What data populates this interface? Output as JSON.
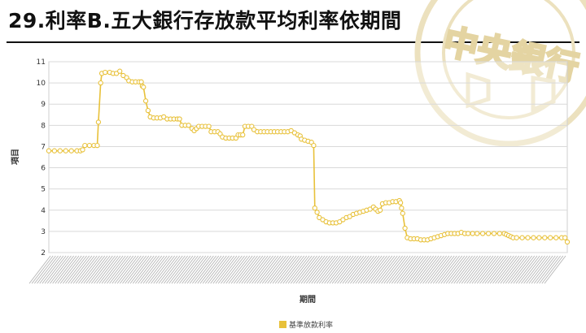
{
  "page": {
    "title": "29.利率B.五大銀行存放款平均利率依期間"
  },
  "watermark": {
    "text": "中央銀行",
    "color": "#e9dcb2"
  },
  "chart_data": {
    "type": "line",
    "title": "",
    "xlabel": "期間",
    "ylabel": "項目",
    "ylim": [
      2,
      11
    ],
    "yticks": [
      2,
      3,
      4,
      5,
      6,
      7,
      8,
      9,
      10,
      11
    ],
    "grid": true,
    "legend_position": "bottom",
    "x_tick_labels_legible": false,
    "series": [
      {
        "name": "基準放款利率",
        "color": "#e8c13a",
        "markers": true,
        "points": [
          [
            0,
            6.8
          ],
          [
            5,
            6.8
          ],
          [
            10,
            6.8
          ],
          [
            15,
            6.8
          ],
          [
            20,
            6.8
          ],
          [
            25,
            6.8
          ],
          [
            28,
            6.8
          ],
          [
            30,
            6.85
          ],
          [
            32,
            7.05
          ],
          [
            36,
            7.05
          ],
          [
            40,
            7.05
          ],
          [
            43,
            7.05
          ],
          [
            44,
            8.15
          ],
          [
            46,
            10.0
          ],
          [
            47,
            10.45
          ],
          [
            50,
            10.5
          ],
          [
            54,
            10.5
          ],
          [
            57,
            10.45
          ],
          [
            60,
            10.45
          ],
          [
            63,
            10.55
          ],
          [
            66,
            10.35
          ],
          [
            69,
            10.25
          ],
          [
            71,
            10.1
          ],
          [
            74,
            10.05
          ],
          [
            77,
            10.05
          ],
          [
            80,
            10.05
          ],
          [
            82,
            10.05
          ],
          [
            83,
            9.85
          ],
          [
            84,
            9.8
          ],
          [
            86,
            9.15
          ],
          [
            88,
            8.7
          ],
          [
            90,
            8.4
          ],
          [
            93,
            8.35
          ],
          [
            96,
            8.35
          ],
          [
            99,
            8.35
          ],
          [
            102,
            8.4
          ],
          [
            105,
            8.3
          ],
          [
            108,
            8.3
          ],
          [
            111,
            8.3
          ],
          [
            114,
            8.3
          ],
          [
            116,
            8.3
          ],
          [
            118,
            8.0
          ],
          [
            121,
            8.0
          ],
          [
            124,
            8.0
          ],
          [
            127,
            7.85
          ],
          [
            129,
            7.75
          ],
          [
            131,
            7.85
          ],
          [
            133,
            7.95
          ],
          [
            136,
            7.95
          ],
          [
            139,
            7.95
          ],
          [
            142,
            7.95
          ],
          [
            144,
            7.7
          ],
          [
            147,
            7.7
          ],
          [
            150,
            7.7
          ],
          [
            152,
            7.6
          ],
          [
            154,
            7.45
          ],
          [
            157,
            7.4
          ],
          [
            160,
            7.4
          ],
          [
            163,
            7.4
          ],
          [
            166,
            7.4
          ],
          [
            168,
            7.55
          ],
          [
            170,
            7.55
          ],
          [
            172,
            7.55
          ],
          [
            174,
            7.95
          ],
          [
            177,
            7.95
          ],
          [
            180,
            7.95
          ],
          [
            182,
            7.8
          ],
          [
            185,
            7.7
          ],
          [
            188,
            7.7
          ],
          [
            191,
            7.7
          ],
          [
            194,
            7.7
          ],
          [
            197,
            7.7
          ],
          [
            200,
            7.7
          ],
          [
            203,
            7.7
          ],
          [
            206,
            7.7
          ],
          [
            209,
            7.7
          ],
          [
            212,
            7.7
          ],
          [
            215,
            7.75
          ],
          [
            218,
            7.65
          ],
          [
            221,
            7.55
          ],
          [
            223,
            7.5
          ],
          [
            224,
            7.35
          ],
          [
            227,
            7.3
          ],
          [
            230,
            7.25
          ],
          [
            233,
            7.2
          ],
          [
            235,
            7.05
          ],
          [
            236,
            4.1
          ],
          [
            238,
            3.9
          ],
          [
            240,
            3.65
          ],
          [
            243,
            3.55
          ],
          [
            246,
            3.45
          ],
          [
            249,
            3.4
          ],
          [
            252,
            3.4
          ],
          [
            255,
            3.4
          ],
          [
            258,
            3.45
          ],
          [
            261,
            3.55
          ],
          [
            264,
            3.65
          ],
          [
            267,
            3.7
          ],
          [
            270,
            3.8
          ],
          [
            273,
            3.85
          ],
          [
            276,
            3.9
          ],
          [
            279,
            3.95
          ],
          [
            282,
            4.0
          ],
          [
            285,
            4.05
          ],
          [
            288,
            4.15
          ],
          [
            290,
            4.05
          ],
          [
            292,
            3.95
          ],
          [
            294,
            4.0
          ],
          [
            296,
            4.3
          ],
          [
            299,
            4.35
          ],
          [
            302,
            4.35
          ],
          [
            305,
            4.4
          ],
          [
            308,
            4.4
          ],
          [
            311,
            4.45
          ],
          [
            312,
            4.35
          ],
          [
            313,
            4.1
          ],
          [
            314,
            3.85
          ],
          [
            316,
            3.15
          ],
          [
            318,
            2.7
          ],
          [
            321,
            2.65
          ],
          [
            324,
            2.65
          ],
          [
            327,
            2.65
          ],
          [
            330,
            2.6
          ],
          [
            333,
            2.6
          ],
          [
            336,
            2.6
          ],
          [
            339,
            2.65
          ],
          [
            342,
            2.7
          ],
          [
            345,
            2.75
          ],
          [
            348,
            2.8
          ],
          [
            351,
            2.85
          ],
          [
            354,
            2.9
          ],
          [
            357,
            2.9
          ],
          [
            360,
            2.9
          ],
          [
            363,
            2.9
          ],
          [
            366,
            2.95
          ],
          [
            369,
            2.9
          ],
          [
            372,
            2.9
          ],
          [
            376,
            2.9
          ],
          [
            380,
            2.9
          ],
          [
            385,
            2.9
          ],
          [
            390,
            2.9
          ],
          [
            395,
            2.9
          ],
          [
            400,
            2.9
          ],
          [
            404,
            2.9
          ],
          [
            406,
            2.85
          ],
          [
            408,
            2.8
          ],
          [
            410,
            2.75
          ],
          [
            412,
            2.7
          ],
          [
            415,
            2.7
          ],
          [
            420,
            2.7
          ],
          [
            425,
            2.7
          ],
          [
            430,
            2.7
          ],
          [
            435,
            2.7
          ],
          [
            440,
            2.7
          ],
          [
            445,
            2.7
          ],
          [
            450,
            2.7
          ],
          [
            455,
            2.7
          ],
          [
            458,
            2.7
          ],
          [
            460,
            2.5
          ]
        ]
      }
    ]
  }
}
